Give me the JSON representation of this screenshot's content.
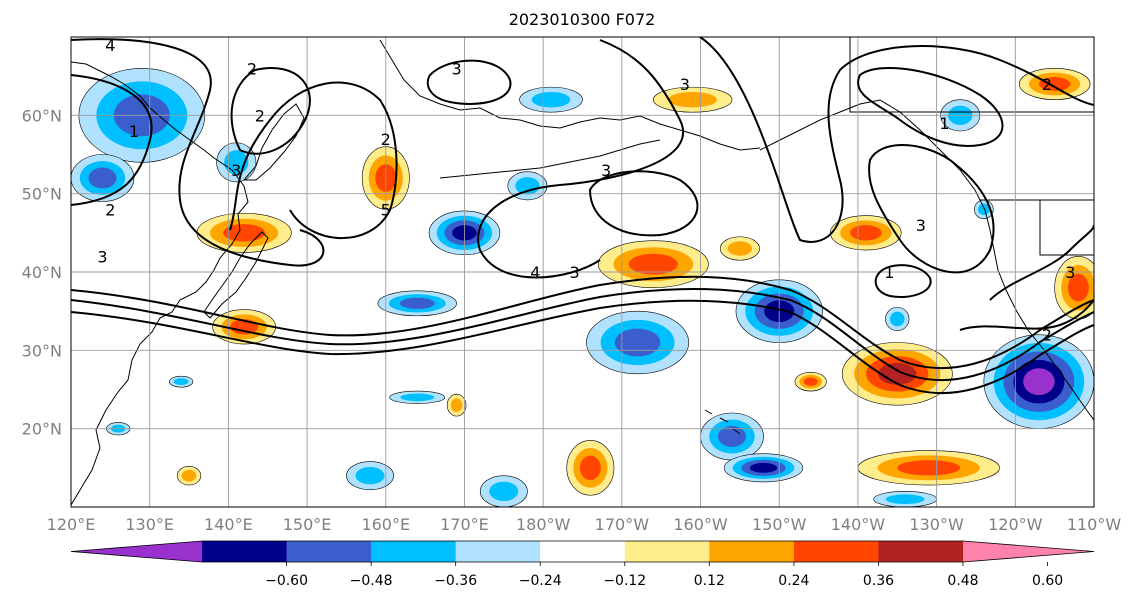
{
  "title": "2023010300 F072",
  "chart_data": {
    "type": "heatmap",
    "title": "2023010300 F072",
    "projection": "plate-carree",
    "lon_range": [
      120,
      250
    ],
    "lat_range": [
      10,
      70
    ],
    "lon_ticks": [
      {
        "value": 120,
        "label": "120°E"
      },
      {
        "value": 130,
        "label": "130°E"
      },
      {
        "value": 140,
        "label": "140°E"
      },
      {
        "value": 150,
        "label": "150°E"
      },
      {
        "value": 160,
        "label": "160°E"
      },
      {
        "value": 170,
        "label": "170°E"
      },
      {
        "value": 180,
        "label": "180°W"
      },
      {
        "value": 190,
        "label": "170°W"
      },
      {
        "value": 200,
        "label": "160°W"
      },
      {
        "value": 210,
        "label": "150°W"
      },
      {
        "value": 220,
        "label": "140°W"
      },
      {
        "value": 230,
        "label": "130°W"
      },
      {
        "value": 240,
        "label": "120°W"
      },
      {
        "value": 250,
        "label": "110°W"
      }
    ],
    "lat_ticks": [
      {
        "value": 20,
        "label": "20°N"
      },
      {
        "value": 30,
        "label": "30°N"
      },
      {
        "value": 40,
        "label": "40°N"
      },
      {
        "value": 50,
        "label": "50°N"
      },
      {
        "value": 60,
        "label": "60°N"
      }
    ],
    "grid": true,
    "colorbar": {
      "orientation": "horizontal",
      "extend": "both",
      "boundaries": [
        -0.72,
        -0.6,
        -0.48,
        -0.36,
        -0.24,
        -0.12,
        0.12,
        0.24,
        0.36,
        0.48,
        0.6,
        0.72
      ],
      "colors": [
        "#9932cc",
        "#00008b",
        "#3a5fcd",
        "#00bfff",
        "#b0e2ff",
        "#ffffff",
        "#ffec8b",
        "#ffa500",
        "#ff4500",
        "#b22222",
        "#ff82ab"
      ],
      "tick_labels": [
        "−0.60",
        "−0.48",
        "−0.36",
        "−0.24",
        "−0.12",
        "0.12",
        "0.24",
        "0.36",
        "0.48",
        "0.60"
      ],
      "tick_values": [
        -0.6,
        -0.48,
        -0.36,
        -0.24,
        -0.12,
        0.12,
        0.24,
        0.36,
        0.48,
        0.6
      ]
    },
    "filled_anomalies": [
      {
        "lon": 129,
        "lat": 60,
        "rx": 8,
        "ry": 6,
        "value": -0.42
      },
      {
        "lon": 124,
        "lat": 52,
        "rx": 4,
        "ry": 3,
        "value": -0.4
      },
      {
        "lon": 141,
        "lat": 54,
        "rx": 2.5,
        "ry": 2.5,
        "value": -0.28
      },
      {
        "lon": 142,
        "lat": 45,
        "rx": 6,
        "ry": 2.5,
        "value": 0.42
      },
      {
        "lon": 142,
        "lat": 33,
        "rx": 4,
        "ry": 2.2,
        "value": 0.4
      },
      {
        "lon": 160,
        "lat": 52,
        "rx": 3,
        "ry": 4,
        "value": 0.45
      },
      {
        "lon": 170,
        "lat": 45,
        "rx": 4.5,
        "ry": 2.8,
        "value": -0.5
      },
      {
        "lon": 164,
        "lat": 36,
        "rx": 5,
        "ry": 1.6,
        "value": -0.42
      },
      {
        "lon": 178,
        "lat": 51,
        "rx": 2.5,
        "ry": 1.8,
        "value": -0.28
      },
      {
        "lon": 181,
        "lat": 62,
        "rx": 4,
        "ry": 1.6,
        "value": -0.32
      },
      {
        "lon": 199,
        "lat": 62,
        "rx": 5,
        "ry": 1.6,
        "value": 0.34
      },
      {
        "lon": 194,
        "lat": 41,
        "rx": 7,
        "ry": 3,
        "value": 0.42
      },
      {
        "lon": 192,
        "lat": 31,
        "rx": 6.5,
        "ry": 4,
        "value": -0.42
      },
      {
        "lon": 210,
        "lat": 35,
        "rx": 5.5,
        "ry": 4,
        "value": -0.56
      },
      {
        "lon": 221,
        "lat": 45,
        "rx": 4.5,
        "ry": 2.2,
        "value": 0.4
      },
      {
        "lon": 225,
        "lat": 27,
        "rx": 7,
        "ry": 4,
        "value": 0.55
      },
      {
        "lon": 233,
        "lat": 60,
        "rx": 2.5,
        "ry": 2,
        "value": -0.32
      },
      {
        "lon": 245,
        "lat": 64,
        "rx": 4.5,
        "ry": 2,
        "value": 0.4
      },
      {
        "lon": 243,
        "lat": 26,
        "rx": 7,
        "ry": 6,
        "value": -0.62
      },
      {
        "lon": 248,
        "lat": 38,
        "rx": 3,
        "ry": 4,
        "value": 0.45
      },
      {
        "lon": 204,
        "lat": 19,
        "rx": 4,
        "ry": 3,
        "value": -0.42
      },
      {
        "lon": 208,
        "lat": 15,
        "rx": 5,
        "ry": 1.8,
        "value": -0.48
      },
      {
        "lon": 229,
        "lat": 15,
        "rx": 9,
        "ry": 2.2,
        "value": 0.45
      },
      {
        "lon": 186,
        "lat": 15,
        "rx": 3,
        "ry": 3.5,
        "value": 0.45
      },
      {
        "lon": 175,
        "lat": 12,
        "rx": 3,
        "ry": 2,
        "value": -0.28
      },
      {
        "lon": 158,
        "lat": 14,
        "rx": 3,
        "ry": 1.8,
        "value": -0.28
      },
      {
        "lon": 164,
        "lat": 24,
        "rx": 3.5,
        "ry": 0.8,
        "value": -0.28
      },
      {
        "lon": 169,
        "lat": 23,
        "rx": 1.2,
        "ry": 1.4,
        "value": 0.26
      },
      {
        "lon": 226,
        "lat": 11,
        "rx": 4,
        "ry": 1,
        "value": -0.3
      },
      {
        "lon": 135,
        "lat": 14,
        "rx": 1.5,
        "ry": 1.2,
        "value": 0.26
      },
      {
        "lon": 126,
        "lat": 20,
        "rx": 1.5,
        "ry": 0.8,
        "value": -0.26
      },
      {
        "lon": 134,
        "lat": 26,
        "rx": 1.5,
        "ry": 0.7,
        "value": -0.26
      },
      {
        "lon": 214,
        "lat": 26,
        "rx": 2,
        "ry": 1.2,
        "value": 0.36
      },
      {
        "lon": 236,
        "lat": 48,
        "rx": 1.2,
        "ry": 1.2,
        "value": -0.3
      },
      {
        "lon": 225,
        "lat": 34,
        "rx": 1.5,
        "ry": 1.5,
        "value": -0.26
      },
      {
        "lon": 205,
        "lat": 43,
        "rx": 2.5,
        "ry": 1.5,
        "value": 0.3
      }
    ],
    "contour_labels": [
      {
        "lon": 125,
        "lat": 69,
        "text": "4"
      },
      {
        "lon": 169,
        "lat": 66,
        "text": "3"
      },
      {
        "lon": 143,
        "lat": 66,
        "text": "2"
      },
      {
        "lon": 144,
        "lat": 60,
        "text": "2"
      },
      {
        "lon": 128,
        "lat": 58,
        "text": "1"
      },
      {
        "lon": 141,
        "lat": 53,
        "text": "3"
      },
      {
        "lon": 125,
        "lat": 48,
        "text": "2"
      },
      {
        "lon": 124,
        "lat": 42,
        "text": "3"
      },
      {
        "lon": 160,
        "lat": 57,
        "text": "2"
      },
      {
        "lon": 160,
        "lat": 48,
        "text": "5"
      },
      {
        "lon": 188,
        "lat": 53,
        "text": "3"
      },
      {
        "lon": 179,
        "lat": 40,
        "text": "4"
      },
      {
        "lon": 184,
        "lat": 40,
        "text": "3"
      },
      {
        "lon": 198,
        "lat": 64,
        "text": "3"
      },
      {
        "lon": 244,
        "lat": 64,
        "text": "2"
      },
      {
        "lon": 231,
        "lat": 59,
        "text": "1"
      },
      {
        "lon": 228,
        "lat": 46,
        "text": "3"
      },
      {
        "lon": 224,
        "lat": 40,
        "text": "1"
      },
      {
        "lon": 247,
        "lat": 40,
        "text": "3"
      },
      {
        "lon": 244,
        "lat": 32,
        "text": "2"
      }
    ]
  }
}
